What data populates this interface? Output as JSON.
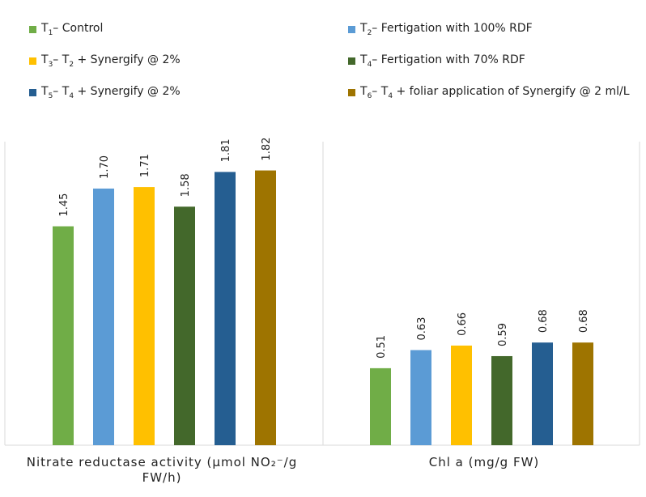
{
  "legend": [
    {
      "id": "t1",
      "prefix": "T",
      "sub": "1",
      "text": "– Control",
      "color": "#70ad47"
    },
    {
      "id": "t2",
      "prefix": "T",
      "sub": "2",
      "text": "– Fertigation with 100% RDF",
      "color": "#5b9bd5"
    },
    {
      "id": "t3",
      "prefix": "T",
      "sub": "3",
      "text": "– T",
      "sub2": "2",
      "text2": " + Synergify @ 2%",
      "color": "#ffc000"
    },
    {
      "id": "t4",
      "prefix": "T",
      "sub": "4",
      "text": "– Fertigation with 70% RDF",
      "color": "#43682b"
    },
    {
      "id": "t5",
      "prefix": "T",
      "sub": "5",
      "text": "– T",
      "sub2": "4",
      "text2": " + Synergify @ 2%",
      "color": "#255e91"
    },
    {
      "id": "t6",
      "prefix": "T",
      "sub": "6",
      "text": "– T",
      "sub2": "4",
      "text2": " + foliar application of Synergify @ 2 ml/L",
      "color": "#9e7400"
    }
  ],
  "chart_data": {
    "type": "bar",
    "series_names": [
      "T1",
      "T2",
      "T3",
      "T4",
      "T5",
      "T6"
    ],
    "panels": [
      {
        "category": "Nitrate reductase activity (µmol NO₂⁻/g FW/h)",
        "title_line1": "Nitrate reductase activity (µmol NO₂⁻/g",
        "title_line2": "FW/h)",
        "values": [
          1.45,
          1.7,
          1.71,
          1.58,
          1.81,
          1.82
        ],
        "labels": [
          "1.45",
          "1.70",
          "1.71",
          "1.58",
          "1.81",
          "1.82"
        ]
      },
      {
        "category": "Chl a (mg/g FW)",
        "title_line1": "Chl a (mg/g FW)",
        "values": [
          0.51,
          0.63,
          0.66,
          0.59,
          0.68,
          0.68
        ],
        "labels": [
          "0.51",
          "0.63",
          "0.66",
          "0.59",
          "0.68",
          "0.68"
        ]
      }
    ],
    "ylim": [
      0,
      2.0
    ],
    "grid": false,
    "legend_position": "top"
  }
}
